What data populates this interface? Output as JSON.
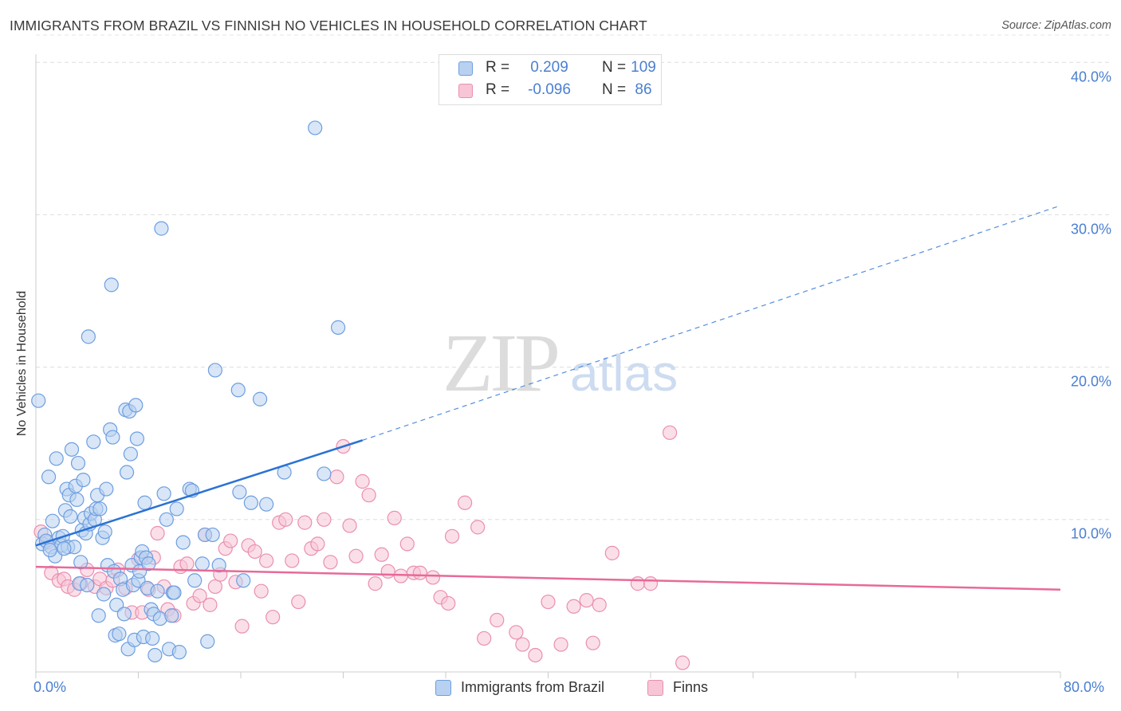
{
  "header": {
    "title": "IMMIGRANTS FROM BRAZIL VS FINNISH NO VEHICLES IN HOUSEHOLD CORRELATION CHART",
    "source": "Source: ZipAtlas.com"
  },
  "watermark": {
    "zip": "ZIP",
    "atlas": "atlas"
  },
  "legend": {
    "rows": [
      {
        "r_label": "R =",
        "r_value": "0.209",
        "n_label": "N =",
        "n_value": "109"
      },
      {
        "r_label": "R =",
        "r_value": "-0.096",
        "n_label": "N =",
        "n_value": "86"
      }
    ]
  },
  "bottom_legend": {
    "series1": "Immigrants from Brazil",
    "series2": "Finns"
  },
  "axes": {
    "ylabel": "No Vehicles in Household",
    "yticks": [
      "40.0%",
      "30.0%",
      "20.0%",
      "10.0%"
    ],
    "xticks": [
      "0.0%",
      "80.0%"
    ]
  },
  "colors": {
    "blue_fill": "#b8d1f0",
    "blue_stroke": "#6e9ee0",
    "blue_line": "#2a72d4",
    "pink_fill": "#f7c5d6",
    "pink_stroke": "#ea8fb0",
    "pink_line": "#e76a98",
    "tick_text": "#4a7fd0"
  },
  "chart_data": {
    "type": "scatter",
    "title": "IMMIGRANTS FROM BRAZIL VS FINNISH NO VEHICLES IN HOUSEHOLD CORRELATION CHART",
    "xlabel": "",
    "ylabel": "No Vehicles in Household",
    "xlim": [
      0,
      80
    ],
    "ylim": [
      0,
      42
    ],
    "x_ticks_percent": [
      0,
      80
    ],
    "y_ticks_percent": [
      10,
      20,
      30,
      40
    ],
    "series": [
      {
        "name": "Immigrants from Brazil",
        "r": 0.209,
        "n": 109,
        "trend": {
          "x0": 0,
          "y0": 8.3,
          "x1": 25.5,
          "y1": 15.2,
          "dash_to_x": 80,
          "dash_to_y": 30.6
        },
        "points": [
          [
            0.2,
            17.8
          ],
          [
            0.5,
            8.4
          ],
          [
            0.7,
            9.0
          ],
          [
            0.8,
            8.6
          ],
          [
            1.0,
            12.8
          ],
          [
            1.2,
            8.2
          ],
          [
            1.3,
            9.9
          ],
          [
            1.5,
            7.6
          ],
          [
            1.6,
            14.0
          ],
          [
            1.8,
            8.8
          ],
          [
            2.0,
            8.3
          ],
          [
            2.1,
            8.9
          ],
          [
            2.3,
            10.6
          ],
          [
            2.4,
            12.0
          ],
          [
            2.5,
            8.2
          ],
          [
            2.6,
            11.6
          ],
          [
            2.7,
            10.2
          ],
          [
            2.8,
            14.6
          ],
          [
            3.0,
            8.2
          ],
          [
            3.1,
            12.2
          ],
          [
            3.2,
            11.3
          ],
          [
            3.3,
            13.7
          ],
          [
            3.4,
            5.8
          ],
          [
            3.5,
            7.2
          ],
          [
            3.6,
            9.3
          ],
          [
            3.7,
            12.6
          ],
          [
            3.8,
            10.1
          ],
          [
            3.9,
            9.1
          ],
          [
            4.0,
            5.7
          ],
          [
            4.1,
            22.0
          ],
          [
            4.2,
            9.7
          ],
          [
            4.3,
            10.4
          ],
          [
            4.5,
            15.1
          ],
          [
            4.6,
            10.0
          ],
          [
            4.7,
            10.7
          ],
          [
            4.8,
            11.6
          ],
          [
            4.9,
            3.7
          ],
          [
            5.0,
            10.7
          ],
          [
            5.2,
            8.8
          ],
          [
            5.3,
            5.1
          ],
          [
            5.4,
            9.2
          ],
          [
            5.5,
            12.0
          ],
          [
            5.6,
            7.0
          ],
          [
            5.8,
            15.9
          ],
          [
            5.9,
            25.4
          ],
          [
            6.0,
            15.4
          ],
          [
            6.1,
            6.6
          ],
          [
            6.2,
            2.4
          ],
          [
            6.3,
            4.4
          ],
          [
            6.5,
            2.5
          ],
          [
            6.6,
            6.1
          ],
          [
            6.8,
            5.4
          ],
          [
            6.9,
            3.8
          ],
          [
            7.0,
            17.2
          ],
          [
            7.1,
            13.1
          ],
          [
            7.2,
            1.5
          ],
          [
            7.3,
            17.1
          ],
          [
            7.4,
            14.3
          ],
          [
            7.5,
            7.0
          ],
          [
            7.6,
            5.7
          ],
          [
            7.7,
            2.1
          ],
          [
            7.8,
            17.5
          ],
          [
            7.9,
            15.3
          ],
          [
            8.0,
            6.0
          ],
          [
            8.1,
            6.6
          ],
          [
            8.2,
            7.5
          ],
          [
            8.3,
            7.9
          ],
          [
            8.4,
            2.3
          ],
          [
            8.5,
            11.1
          ],
          [
            8.6,
            7.5
          ],
          [
            8.7,
            5.5
          ],
          [
            8.8,
            7.1
          ],
          [
            9.0,
            4.1
          ],
          [
            9.1,
            2.2
          ],
          [
            9.2,
            3.8
          ],
          [
            9.3,
            1.1
          ],
          [
            9.5,
            5.3
          ],
          [
            9.7,
            3.5
          ],
          [
            9.8,
            29.1
          ],
          [
            10.0,
            11.7
          ],
          [
            10.2,
            10.0
          ],
          [
            10.4,
            1.5
          ],
          [
            10.6,
            3.7
          ],
          [
            10.7,
            5.2
          ],
          [
            10.8,
            5.2
          ],
          [
            11.0,
            10.7
          ],
          [
            11.2,
            1.3
          ],
          [
            11.5,
            8.5
          ],
          [
            12.0,
            12.0
          ],
          [
            12.2,
            11.9
          ],
          [
            12.4,
            6.0
          ],
          [
            13.0,
            7.1
          ],
          [
            13.2,
            9.0
          ],
          [
            13.4,
            2.0
          ],
          [
            13.8,
            9.0
          ],
          [
            14.0,
            19.8
          ],
          [
            14.3,
            7.0
          ],
          [
            15.8,
            18.5
          ],
          [
            15.9,
            11.8
          ],
          [
            16.2,
            6.0
          ],
          [
            16.8,
            11.1
          ],
          [
            17.5,
            17.9
          ],
          [
            18.0,
            11.0
          ],
          [
            19.4,
            13.1
          ],
          [
            21.8,
            35.7
          ],
          [
            22.5,
            13.0
          ],
          [
            23.6,
            22.6
          ],
          [
            2.2,
            8.1
          ],
          [
            1.1,
            8.0
          ]
        ]
      },
      {
        "name": "Finns",
        "r": -0.096,
        "n": 86,
        "trend": {
          "x0": 0,
          "y0": 6.9,
          "x1": 80,
          "y1": 5.4
        },
        "points": [
          [
            0.4,
            9.2
          ],
          [
            0.9,
            8.5
          ],
          [
            1.2,
            6.5
          ],
          [
            1.8,
            6.0
          ],
          [
            2.2,
            6.1
          ],
          [
            2.5,
            5.6
          ],
          [
            3.0,
            5.4
          ],
          [
            3.5,
            5.8
          ],
          [
            4.0,
            6.7
          ],
          [
            4.6,
            5.6
          ],
          [
            5.0,
            6.1
          ],
          [
            5.5,
            5.5
          ],
          [
            6.0,
            6.0
          ],
          [
            6.4,
            6.7
          ],
          [
            7.0,
            5.5
          ],
          [
            7.5,
            3.9
          ],
          [
            8.0,
            7.4
          ],
          [
            8.3,
            3.9
          ],
          [
            8.8,
            5.4
          ],
          [
            9.2,
            7.5
          ],
          [
            9.5,
            9.1
          ],
          [
            10.0,
            5.6
          ],
          [
            10.3,
            4.1
          ],
          [
            10.8,
            3.7
          ],
          [
            11.3,
            6.9
          ],
          [
            11.8,
            7.1
          ],
          [
            12.3,
            4.5
          ],
          [
            12.8,
            5.0
          ],
          [
            13.2,
            9.0
          ],
          [
            13.6,
            4.4
          ],
          [
            14.0,
            5.6
          ],
          [
            14.4,
            6.4
          ],
          [
            14.8,
            8.1
          ],
          [
            15.2,
            8.6
          ],
          [
            15.6,
            5.9
          ],
          [
            16.1,
            3.0
          ],
          [
            16.6,
            8.3
          ],
          [
            17.1,
            7.9
          ],
          [
            17.6,
            5.3
          ],
          [
            18.0,
            7.3
          ],
          [
            18.5,
            3.6
          ],
          [
            19.0,
            9.8
          ],
          [
            19.5,
            10.0
          ],
          [
            20.0,
            7.3
          ],
          [
            20.5,
            4.6
          ],
          [
            21.0,
            9.8
          ],
          [
            21.5,
            8.1
          ],
          [
            22.0,
            8.4
          ],
          [
            22.5,
            10.0
          ],
          [
            23.0,
            7.2
          ],
          [
            23.5,
            12.8
          ],
          [
            24.0,
            14.8
          ],
          [
            24.5,
            9.6
          ],
          [
            25.0,
            7.6
          ],
          [
            25.5,
            12.5
          ],
          [
            26.0,
            11.6
          ],
          [
            26.5,
            5.8
          ],
          [
            27.0,
            7.7
          ],
          [
            27.5,
            6.6
          ],
          [
            28.0,
            10.1
          ],
          [
            28.5,
            6.3
          ],
          [
            29.0,
            8.4
          ],
          [
            29.5,
            6.5
          ],
          [
            30.0,
            6.5
          ],
          [
            31.0,
            6.2
          ],
          [
            31.6,
            4.9
          ],
          [
            32.2,
            4.5
          ],
          [
            32.5,
            8.9
          ],
          [
            33.5,
            11.1
          ],
          [
            34.5,
            9.5
          ],
          [
            35.0,
            2.2
          ],
          [
            36.0,
            3.4
          ],
          [
            37.5,
            2.6
          ],
          [
            38.0,
            1.8
          ],
          [
            39.0,
            1.1
          ],
          [
            40.0,
            4.6
          ],
          [
            41.0,
            1.8
          ],
          [
            42.0,
            4.3
          ],
          [
            43.0,
            4.7
          ],
          [
            43.5,
            1.9
          ],
          [
            44.0,
            4.4
          ],
          [
            45.0,
            7.8
          ],
          [
            47.0,
            5.8
          ],
          [
            48.0,
            5.8
          ],
          [
            49.5,
            15.7
          ],
          [
            50.5,
            0.6
          ]
        ]
      }
    ]
  }
}
